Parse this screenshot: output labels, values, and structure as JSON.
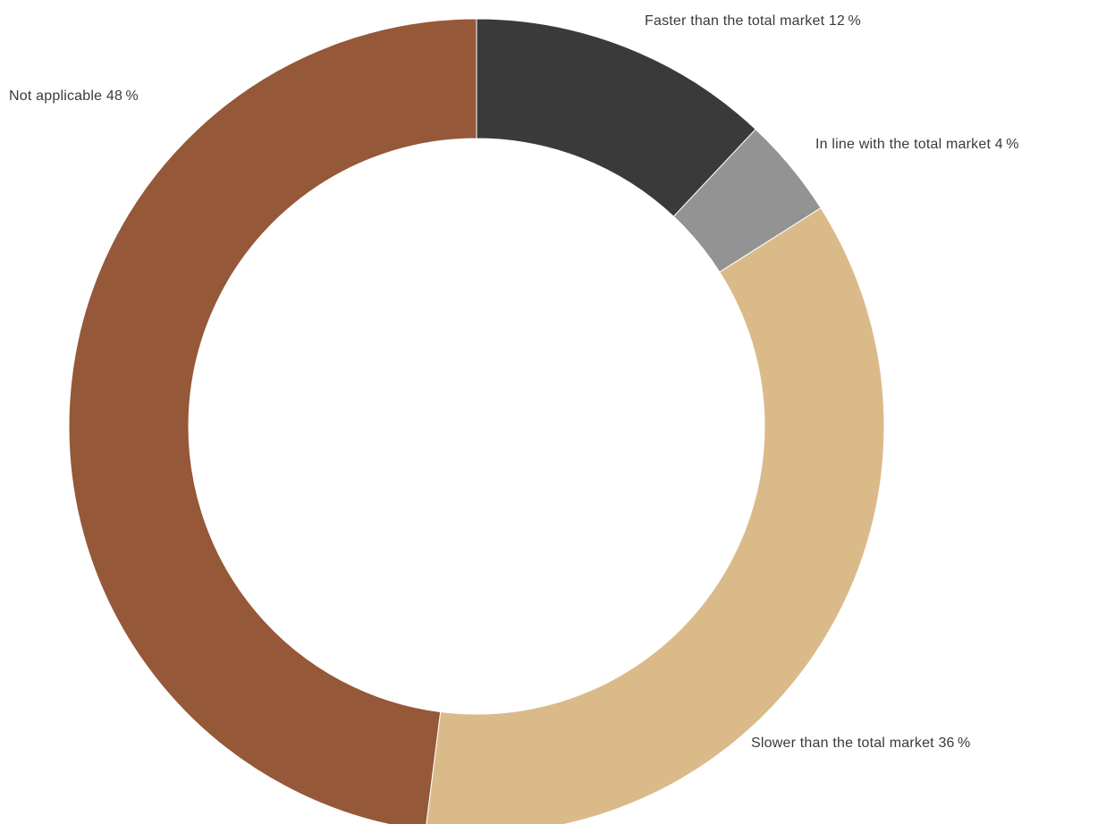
{
  "chart_data": {
    "type": "pie",
    "donut": true,
    "start_angle_deg": 0,
    "direction": "clockwise",
    "title": "",
    "legend": "none",
    "slices": [
      {
        "key": "faster",
        "label": "Faster than the total market 12 %",
        "category": "Faster than the total market",
        "value": 12,
        "color": "#3a3a3a"
      },
      {
        "key": "inline",
        "label": "In line with the total market 4 %",
        "category": "In line with the total market",
        "value": 4,
        "color": "#939393"
      },
      {
        "key": "slower",
        "label": "Slower than the total market 36 %",
        "category": "Slower than the total market",
        "value": 36,
        "color": "#dbba8a"
      },
      {
        "key": "na",
        "label": "Not applicable 48 %",
        "category": "Not applicable",
        "value": 48,
        "color": "#955838"
      }
    ]
  }
}
